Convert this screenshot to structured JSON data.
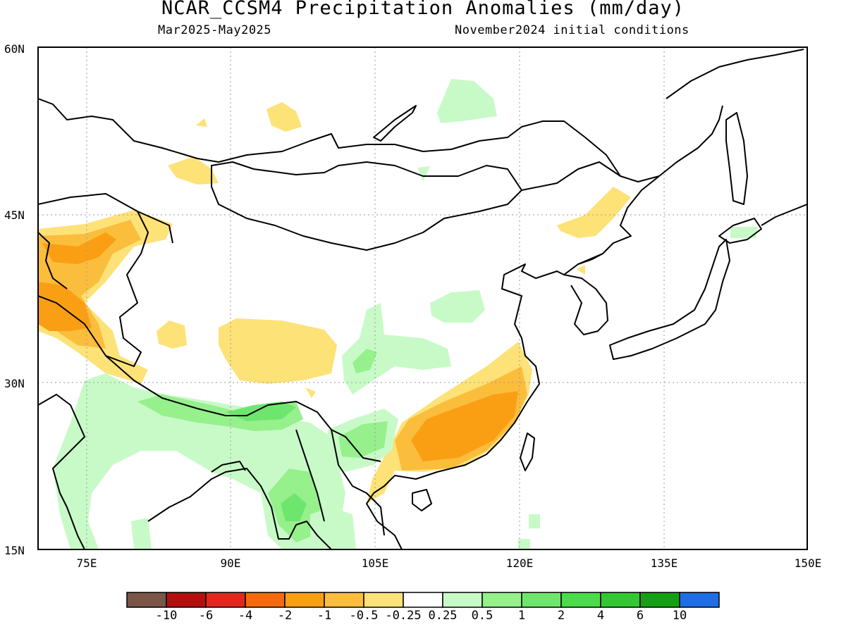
{
  "header": {
    "title": "NCAR_CCSM4 Precipitation Anomalies (mm/day)",
    "period": "Mar2025-May2025",
    "init": "November2024 initial conditions"
  },
  "axes": {
    "lat_labels": [
      "60N",
      "45N",
      "30N",
      "15N"
    ],
    "lon_labels": [
      "75E",
      "90E",
      "105E",
      "120E",
      "135E",
      "150E"
    ]
  },
  "colorbar": {
    "colors": [
      "#7a5548",
      "#b40f0f",
      "#e0281e",
      "#f56a0a",
      "#fa9f14",
      "#fbbd3c",
      "#fde278",
      "#ffffff",
      "#c8fac8",
      "#96f08c",
      "#6ee66e",
      "#4bdc4b",
      "#32c832",
      "#14a014",
      "#1e6ee6"
    ],
    "labels": [
      "-10",
      "-6",
      "-4",
      "-2",
      "-1",
      "-0.5",
      "-0.25",
      "0.25",
      "0.5",
      "1",
      "2",
      "4",
      "6",
      "10"
    ]
  },
  "legend_key": {
    "dry_light": "#fde278",
    "dry_mid": "#fbbd3c",
    "dry_strong": "#fa9f14",
    "wet_light": "#c8fac8",
    "wet_mid": "#96f08c",
    "wet_strong": "#6ee66e"
  }
}
